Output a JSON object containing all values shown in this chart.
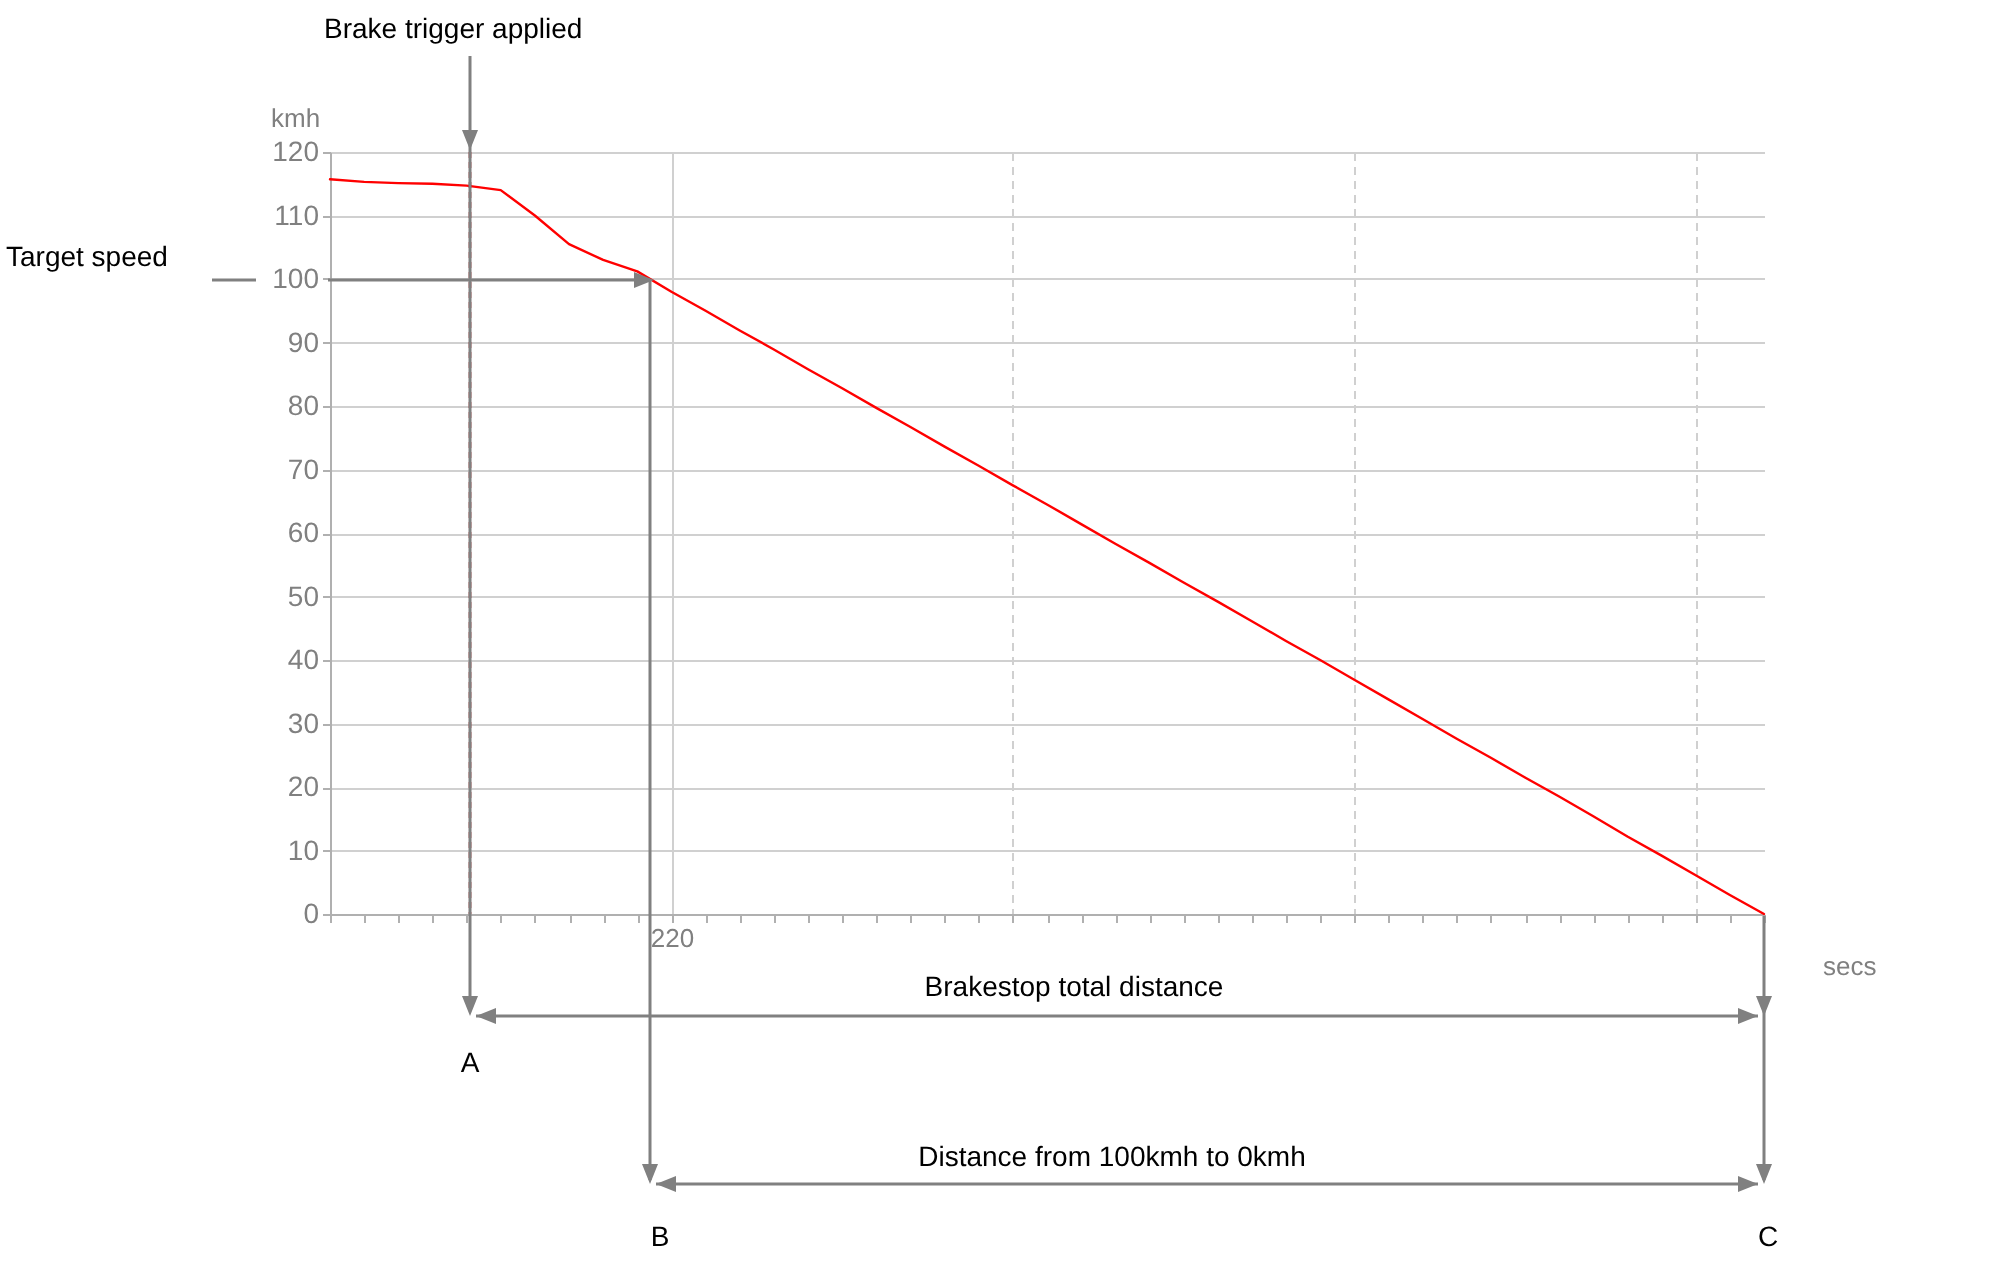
{
  "chart_data": {
    "type": "line",
    "xlabel": "secs",
    "ylabel": "kmh",
    "categories": [
      null,
      null,
      null,
      null,
      null,
      null,
      null,
      null,
      null,
      null,
      "220",
      null,
      null,
      null,
      null,
      null,
      null,
      null,
      null,
      null,
      null,
      null,
      null,
      null,
      null,
      null,
      null,
      null,
      null,
      null,
      null,
      null,
      null,
      null,
      null,
      null,
      null,
      null,
      null,
      null,
      null,
      null,
      null
    ],
    "series": [
      {
        "color": "#ff0000",
        "values": [
          115.7,
          115.3,
          115.1,
          115,
          114.7,
          114,
          110,
          105.5,
          103,
          101.2,
          98,
          95,
          91.9,
          88.9,
          85.8,
          82.8,
          79.7,
          76.7,
          73.6,
          70.6,
          67.5,
          64.5,
          61.4,
          58.3,
          55.3,
          52.2,
          49.2,
          46.1,
          43,
          40,
          36.9,
          33.8,
          30.7,
          27.6,
          24.6,
          21.5,
          18.5,
          15.4,
          12.2,
          9.2,
          6.1,
          3,
          0
        ]
      }
    ],
    "ylim": [
      0,
      120
    ],
    "yticks": [
      0,
      10,
      20,
      30,
      40,
      50,
      60,
      70,
      80,
      90,
      100,
      110,
      120
    ],
    "grid": true,
    "annotations": [
      "Brake trigger applied",
      "Target speed",
      "Brakestop total distance",
      "Distance from 100kmh to 0kmh",
      "A",
      "B",
      "C"
    ]
  }
}
